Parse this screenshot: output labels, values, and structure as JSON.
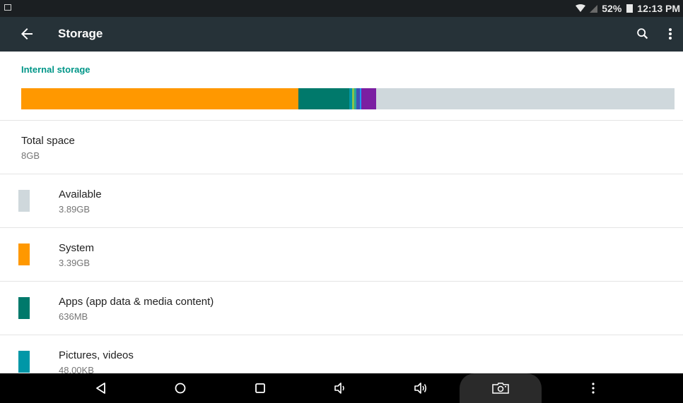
{
  "status_bar": {
    "battery_percent": "52%",
    "time": "12:13 PM"
  },
  "app_bar": {
    "title": "Storage",
    "icons": [
      "back-arrow-icon",
      "search-icon",
      "more-vert-icon"
    ]
  },
  "internal_storage": {
    "header": "Internal storage",
    "usage_bar": [
      {
        "name": "System",
        "fraction": 0.424,
        "color": "#ff9800"
      },
      {
        "name": "Apps",
        "fraction": 0.078,
        "color": "#00796b"
      },
      {
        "name": "Pictures, videos",
        "fraction": 0.004,
        "color": "#0097a7"
      },
      {
        "name": "other-green",
        "fraction": 0.004,
        "color": "#8bc34a"
      },
      {
        "name": "other-teal",
        "fraction": 0.003,
        "color": "#26a69a"
      },
      {
        "name": "other-blue",
        "fraction": 0.005,
        "color": "#3f51b5"
      },
      {
        "name": "other-lightblue",
        "fraction": 0.003,
        "color": "#2196f3"
      },
      {
        "name": "other-purple",
        "fraction": 0.022,
        "color": "#7b1fa2"
      }
    ],
    "available_color": "#cfd8dc"
  },
  "total": {
    "label": "Total space",
    "value": "8GB"
  },
  "categories": [
    {
      "label": "Available",
      "value": "3.89GB",
      "color": "#cfd8dc"
    },
    {
      "label": "System",
      "value": "3.39GB",
      "color": "#ff9800"
    },
    {
      "label": "Apps (app data & media content)",
      "value": "636MB",
      "color": "#00796b"
    },
    {
      "label": "Pictures, videos",
      "value": "48.00KB",
      "color": "#0097a7"
    }
  ],
  "nav_bar": {
    "icons": [
      "back-triangle-icon",
      "home-circle-icon",
      "recents-square-icon",
      "volume-down-icon",
      "volume-up-icon",
      "screenshot-icon",
      "menu-dots-icon"
    ]
  }
}
